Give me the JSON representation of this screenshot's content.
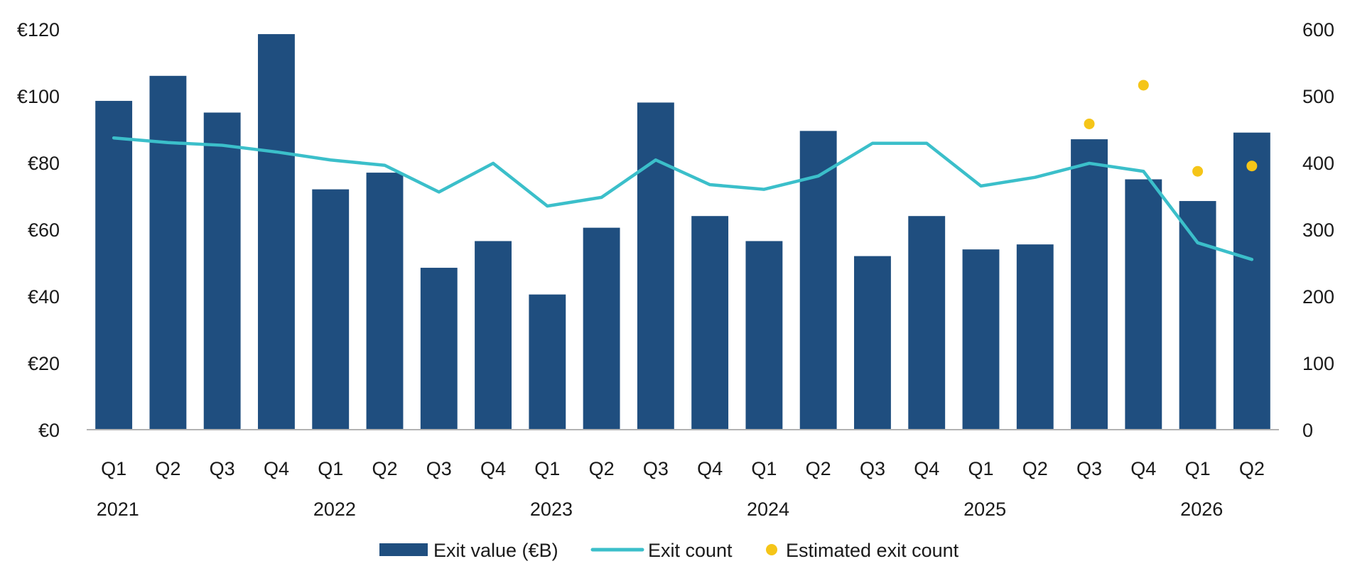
{
  "chart_data": {
    "type": "bar",
    "title": "",
    "xlabel": "",
    "ylabel": "",
    "categories": [
      "Q1",
      "Q2",
      "Q3",
      "Q4",
      "Q1",
      "Q2",
      "Q3",
      "Q4",
      "Q1",
      "Q2",
      "Q3",
      "Q4",
      "Q1",
      "Q2",
      "Q3",
      "Q4",
      "Q1",
      "Q2",
      "Q3",
      "Q4",
      "Q1",
      "Q2"
    ],
    "years": [
      {
        "label": "2021",
        "start": 0,
        "end": 3
      },
      {
        "label": "2022",
        "start": 4,
        "end": 7
      },
      {
        "label": "2023",
        "start": 8,
        "end": 11
      },
      {
        "label": "2024",
        "start": 12,
        "end": 15
      },
      {
        "label": "2025",
        "start": 16,
        "end": 19
      },
      {
        "label": "2026",
        "start": 20,
        "end": 21
      }
    ],
    "y_left": {
      "ylim": [
        0,
        120
      ],
      "ticks": [
        0,
        20,
        40,
        60,
        80,
        100,
        120
      ],
      "tick_labels": [
        "€0",
        "€20",
        "€40",
        "€60",
        "€80",
        "€100",
        "€120"
      ]
    },
    "y_right": {
      "ylim": [
        0,
        600
      ],
      "ticks": [
        0,
        100,
        200,
        300,
        400,
        500,
        600
      ],
      "tick_labels": [
        "0",
        "100",
        "200",
        "300",
        "400",
        "500",
        "600"
      ]
    },
    "series": [
      {
        "name": "Exit value (€B)",
        "type": "bar",
        "axis": "left",
        "color": "#1f4e7f",
        "values": [
          98.5,
          106,
          95,
          118.5,
          72,
          77,
          48.5,
          56.5,
          40.5,
          60.5,
          98,
          64,
          56.5,
          89.5,
          52,
          64,
          54,
          55.5,
          87,
          75,
          68.5,
          89
        ]
      },
      {
        "name": "Exit count",
        "type": "line",
        "axis": "right",
        "color": "#3bbfca",
        "values": [
          437,
          430,
          426,
          416,
          404,
          396,
          356,
          399,
          335,
          348,
          404,
          367,
          360,
          380,
          429,
          429,
          365,
          378,
          399,
          387,
          280,
          255
        ]
      },
      {
        "name": "Estimated exit count",
        "type": "scatter",
        "axis": "right",
        "color": "#f5c518",
        "points": [
          {
            "index": 18,
            "value": 458
          },
          {
            "index": 19,
            "value": 516
          },
          {
            "index": 20,
            "value": 387
          },
          {
            "index": 21,
            "value": 395
          }
        ]
      }
    ],
    "grid": false,
    "legend_position": "bottom-center"
  }
}
